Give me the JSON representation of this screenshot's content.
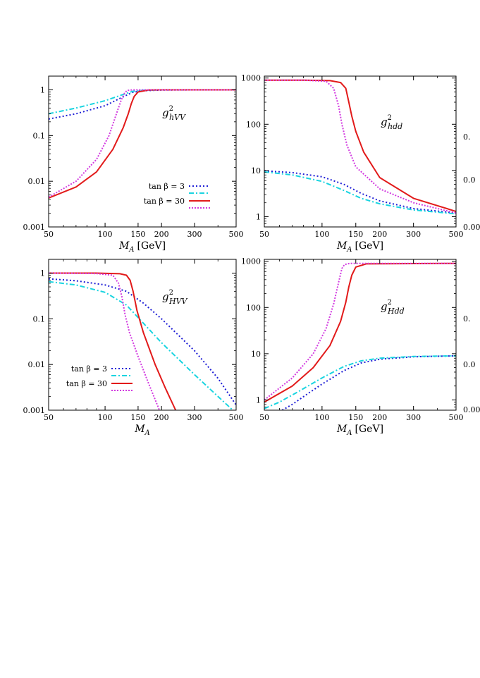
{
  "legend_entries": [
    {
      "label": "tan β = 3",
      "colors": [
        "#1f1fd6",
        "#19d4e0"
      ],
      "dashes": [
        "2,3",
        "7,3,2,3"
      ]
    },
    {
      "label": "tan β = 30",
      "colors": [
        "#e21a1a",
        "#d23ae0"
      ],
      "dashes": [
        "",
        "2,2"
      ]
    }
  ],
  "chart_data": [
    {
      "type": "line",
      "panel_label": "g²_{hVV}",
      "label_main": "g",
      "label_sup": "2",
      "label_sub": "hVV",
      "xlabel": "M_A [GeV]",
      "xlabel_main": "M",
      "xlabel_sub": "A",
      "xlabel_unit": "[GeV]",
      "xscale": "log",
      "yscale": "log",
      "xlim": [
        50,
        500
      ],
      "ylim": [
        0.001,
        2
      ],
      "xticks": [
        50,
        100,
        150,
        200,
        300,
        500
      ],
      "xtick_labels": [
        "50",
        "100",
        "150",
        "200",
        "300",
        "500"
      ],
      "yticks": [
        0.001,
        0.01,
        0.1,
        1
      ],
      "ytick_labels": [
        "0.001",
        "0.01",
        "0.1",
        "1"
      ],
      "legend": "bottom-right",
      "series": [
        {
          "style": "blue dotted",
          "color": "#1f1fd6",
          "x": [
            50,
            70,
            100,
            120,
            140,
            160,
            200,
            300,
            500
          ],
          "y": [
            0.23,
            0.3,
            0.45,
            0.65,
            0.88,
            0.96,
            0.99,
            1.0,
            1.0
          ]
        },
        {
          "style": "cyan dash-dot",
          "color": "#19d4e0",
          "x": [
            50,
            70,
            100,
            120,
            140,
            160,
            200,
            300,
            500
          ],
          "y": [
            0.3,
            0.4,
            0.58,
            0.75,
            0.93,
            0.98,
            1.0,
            1.0,
            1.0
          ]
        },
        {
          "style": "red solid",
          "color": "#e21a1a",
          "x": [
            50,
            70,
            90,
            110,
            125,
            133,
            138,
            143,
            150,
            170,
            200,
            500
          ],
          "y": [
            0.0043,
            0.0075,
            0.016,
            0.05,
            0.15,
            0.3,
            0.5,
            0.72,
            0.9,
            0.99,
            1.0,
            1.0
          ]
        },
        {
          "style": "magenta dotted",
          "color": "#d23ae0",
          "x": [
            50,
            70,
            90,
            105,
            115,
            122,
            127,
            131,
            140,
            200,
            500
          ],
          "y": [
            0.0045,
            0.01,
            0.03,
            0.1,
            0.3,
            0.6,
            0.85,
            0.97,
            1.0,
            1.0,
            1.0
          ]
        }
      ]
    },
    {
      "type": "line",
      "panel_label": "g²_{hdd}",
      "label_main": "g",
      "label_sup": "2",
      "label_sub": "hdd",
      "xlabel": "M_A [GeV]",
      "xlabel_main": "M",
      "xlabel_sub": "A",
      "xlabel_unit": "[GeV]",
      "xscale": "log",
      "yscale": "log",
      "xlim": [
        50,
        500
      ],
      "ylim": [
        0.6,
        1100
      ],
      "xticks": [
        50,
        100,
        150,
        200,
        300,
        500
      ],
      "xtick_labels": [
        "50",
        "100",
        "150",
        "200",
        "300",
        "500"
      ],
      "yticks": [
        1,
        10,
        100,
        1000
      ],
      "ytick_labels": [
        "1",
        "10",
        "100",
        "1000"
      ],
      "series": [
        {
          "style": "blue dotted",
          "color": "#1f1fd6",
          "x": [
            50,
            70,
            100,
            130,
            160,
            200,
            300,
            500
          ],
          "y": [
            9.8,
            9.0,
            7.3,
            5.0,
            3.2,
            2.2,
            1.5,
            1.2
          ]
        },
        {
          "style": "cyan dash-dot",
          "color": "#19d4e0",
          "x": [
            50,
            70,
            100,
            130,
            160,
            200,
            300,
            500
          ],
          "y": [
            9.3,
            8.0,
            5.8,
            3.7,
            2.5,
            1.9,
            1.4,
            1.15
          ]
        },
        {
          "style": "red solid",
          "color": "#e21a1a",
          "x": [
            50,
            80,
            110,
            125,
            133,
            138,
            143,
            150,
            165,
            200,
            300,
            500
          ],
          "y": [
            900,
            900,
            880,
            800,
            600,
            300,
            150,
            70,
            25,
            7,
            2.5,
            1.3
          ]
        },
        {
          "style": "magenta dotted",
          "color": "#d23ae0",
          "x": [
            50,
            80,
            105,
            115,
            122,
            127,
            135,
            150,
            200,
            300,
            500
          ],
          "y": [
            900,
            900,
            850,
            600,
            250,
            100,
            35,
            12,
            4,
            2,
            1.2
          ]
        }
      ]
    },
    {
      "type": "line",
      "panel_label": "g²_{HVV}",
      "label_main": "g",
      "label_sup": "2",
      "label_sub": "HVV",
      "xlabel": "M_A",
      "xlabel_main": "M",
      "xlabel_sub": "A",
      "xlabel_unit": "",
      "xscale": "log",
      "yscale": "log",
      "xlim": [
        50,
        500
      ],
      "ylim": [
        0.001,
        2
      ],
      "xticks": [
        50,
        100,
        150,
        200,
        300,
        500
      ],
      "xtick_labels": [
        "50",
        "100",
        "150",
        "200",
        "300",
        "500"
      ],
      "yticks": [
        0.001,
        0.01,
        0.1,
        1
      ],
      "ytick_labels": [
        "0.001",
        "0.01",
        "0.1",
        "1"
      ],
      "legend": "bottom-left",
      "series": [
        {
          "style": "blue dotted",
          "color": "#1f1fd6",
          "x": [
            50,
            70,
            100,
            130,
            160,
            200,
            300,
            400,
            500
          ],
          "y": [
            0.75,
            0.68,
            0.55,
            0.4,
            0.22,
            0.1,
            0.02,
            0.005,
            0.0013
          ]
        },
        {
          "style": "cyan dash-dot",
          "color": "#19d4e0",
          "x": [
            50,
            70,
            100,
            130,
            160,
            200,
            300,
            400,
            480
          ],
          "y": [
            0.65,
            0.55,
            0.38,
            0.2,
            0.08,
            0.03,
            0.006,
            0.002,
            0.001
          ]
        },
        {
          "style": "red solid",
          "color": "#e21a1a",
          "x": [
            50,
            90,
            120,
            130,
            136,
            141,
            148,
            160,
            185,
            210,
            238
          ],
          "y": [
            1.0,
            1.0,
            0.97,
            0.9,
            0.7,
            0.4,
            0.15,
            0.05,
            0.01,
            0.003,
            0.001
          ]
        },
        {
          "style": "magenta dotted",
          "color": "#d23ae0",
          "x": [
            50,
            90,
            110,
            118,
            123,
            128,
            135,
            150,
            170,
            195
          ],
          "y": [
            1.0,
            0.98,
            0.9,
            0.6,
            0.3,
            0.12,
            0.05,
            0.015,
            0.004,
            0.001
          ]
        }
      ]
    },
    {
      "type": "line",
      "panel_label": "g²_{Hdd}",
      "label_main": "g",
      "label_sup": "2",
      "label_sub": "Hdd",
      "xlabel": "M_A [GeV]",
      "xlabel_main": "M",
      "xlabel_sub": "A",
      "xlabel_unit": "[GeV]",
      "xscale": "log",
      "yscale": "log",
      "xlim": [
        50,
        500
      ],
      "ylim": [
        0.6,
        1100
      ],
      "xticks": [
        50,
        100,
        150,
        200,
        300,
        500
      ],
      "xtick_labels": [
        "50",
        "100",
        "150",
        "200",
        "300",
        "500"
      ],
      "yticks": [
        1,
        10,
        100,
        1000
      ],
      "ytick_labels": [
        "1",
        "10",
        "100",
        "1000"
      ],
      "series": [
        {
          "style": "blue dotted",
          "color": "#1f1fd6",
          "x": [
            62,
            70,
            85,
            100,
            130,
            160,
            200,
            300,
            500
          ],
          "y": [
            0.6,
            0.8,
            1.4,
            2.2,
            4.3,
            6.3,
            7.6,
            8.6,
            9.0
          ]
        },
        {
          "style": "cyan dash-dot",
          "color": "#19d4e0",
          "x": [
            50,
            60,
            75,
            100,
            130,
            160,
            200,
            300,
            500
          ],
          "y": [
            0.65,
            0.9,
            1.5,
            3.0,
            5.3,
            7.0,
            8.0,
            8.7,
            9.0
          ]
        },
        {
          "style": "red solid",
          "color": "#e21a1a",
          "x": [
            50,
            70,
            90,
            110,
            125,
            133,
            138,
            143,
            150,
            170,
            500
          ],
          "y": [
            0.9,
            2.0,
            5.0,
            15,
            50,
            130,
            280,
            500,
            750,
            880,
            900
          ]
        },
        {
          "style": "magenta dotted",
          "color": "#d23ae0",
          "x": [
            50,
            70,
            90,
            105,
            115,
            122,
            127,
            131,
            140,
            500
          ],
          "y": [
            1.0,
            3.0,
            10,
            35,
            120,
            350,
            700,
            850,
            900,
            900
          ]
        }
      ]
    }
  ],
  "right_edge_fragments": [
    {
      "text": "0."
    },
    {
      "text": "0.0"
    },
    {
      "text": "0.00"
    },
    {
      "text": "0."
    },
    {
      "text": "0.0"
    },
    {
      "text": "0.00"
    }
  ]
}
